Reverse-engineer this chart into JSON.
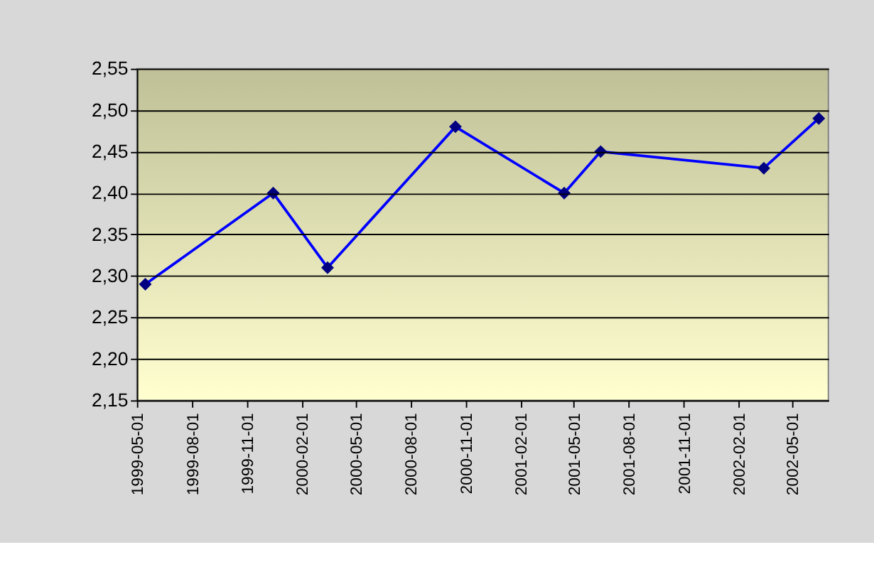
{
  "chart_data": {
    "type": "line",
    "x": [
      "1999-05-15",
      "1999-12-15",
      "2000-03-15",
      "2000-10-15",
      "2001-04-15",
      "2001-06-15",
      "2002-03-15",
      "2002-06-15"
    ],
    "series": [
      {
        "color": "#0000ff",
        "values": [
          2.29,
          2.4,
          2.31,
          2.48,
          2.4,
          2.45,
          2.43,
          2.49
        ]
      }
    ],
    "xlim": [
      "1999-05-01",
      "2002-07-01"
    ],
    "xticks": [
      "1999-05-01",
      "1999-08-01",
      "1999-11-01",
      "2000-02-01",
      "2000-05-01",
      "2000-08-01",
      "2000-11-01",
      "2001-02-01",
      "2001-05-01",
      "2001-08-01",
      "2001-11-01",
      "2002-02-01",
      "2002-05-01"
    ],
    "ylim": [
      2.15,
      2.55
    ],
    "yticks": [
      {
        "value": 2.15,
        "label": "2,15"
      },
      {
        "value": 2.2,
        "label": "2,20"
      },
      {
        "value": 2.25,
        "label": "2,25"
      },
      {
        "value": 2.3,
        "label": "2,30"
      },
      {
        "value": 2.35,
        "label": "2,35"
      },
      {
        "value": 2.4,
        "label": "2,40"
      },
      {
        "value": 2.45,
        "label": "2,45"
      },
      {
        "value": 2.5,
        "label": "2,50"
      },
      {
        "value": 2.55,
        "label": "2,55"
      }
    ],
    "grid": "y",
    "marker": "diamond",
    "line_style": "solid",
    "legend": false
  }
}
